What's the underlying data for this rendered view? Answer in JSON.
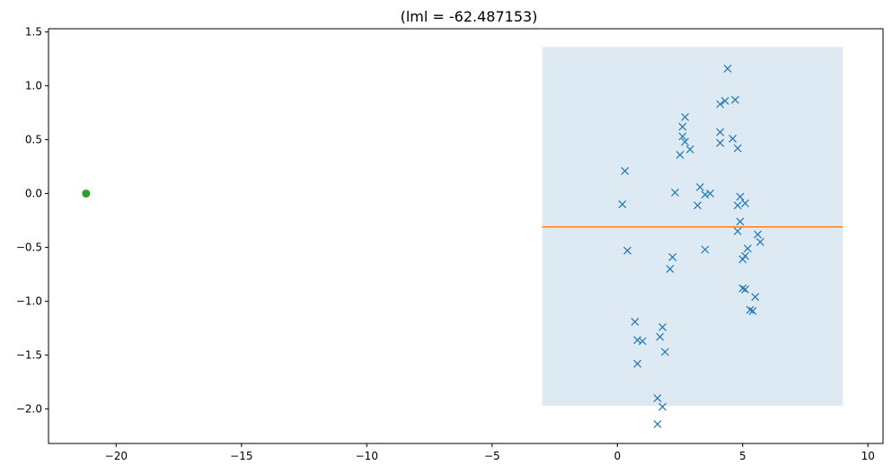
{
  "chart_data": {
    "type": "scatter",
    "title": "(lml = -62.487153)",
    "xlabel": "",
    "ylabel": "",
    "xlim": [
      -22.7,
      10.6
    ],
    "ylim": [
      -2.32,
      1.53
    ],
    "xticks": [
      -20,
      -15,
      -10,
      -5,
      0,
      5,
      10
    ],
    "xtick_labels": [
      "−20",
      "−15",
      "−10",
      "−5",
      "0",
      "5",
      "10"
    ],
    "yticks": [
      -2.0,
      -1.5,
      -1.0,
      -0.5,
      0.0,
      0.5,
      1.0,
      1.5
    ],
    "ytick_labels": [
      "−2.0",
      "−1.5",
      "−1.0",
      "−0.5",
      "0.0",
      "0.5",
      "1.0",
      "1.5"
    ],
    "grid": false,
    "colors": {
      "observations": "#1f77b4",
      "mean": "#ff7f0e",
      "band": "#dde9f3",
      "point": "#2ca02c",
      "axes": "#000000"
    },
    "band": {
      "x": [
        -3.0,
        9.0
      ],
      "y": [
        -1.97,
        1.36
      ]
    },
    "mean_line": {
      "x": [
        -3.0,
        9.0
      ],
      "y": -0.31
    },
    "highlight_point": {
      "x": -21.2,
      "y": 0.0
    },
    "observations": [
      {
        "x": 0.2,
        "y": -0.1
      },
      {
        "x": 0.3,
        "y": 0.21
      },
      {
        "x": 0.4,
        "y": -0.53
      },
      {
        "x": 0.7,
        "y": -1.19
      },
      {
        "x": 0.8,
        "y": -1.36
      },
      {
        "x": 0.8,
        "y": -1.58
      },
      {
        "x": 1.0,
        "y": -1.37
      },
      {
        "x": 1.6,
        "y": -1.9
      },
      {
        "x": 1.6,
        "y": -2.14
      },
      {
        "x": 1.7,
        "y": -1.33
      },
      {
        "x": 1.8,
        "y": -1.24
      },
      {
        "x": 1.8,
        "y": -1.98
      },
      {
        "x": 1.9,
        "y": -1.47
      },
      {
        "x": 2.1,
        "y": -0.7
      },
      {
        "x": 2.2,
        "y": -0.59
      },
      {
        "x": 2.3,
        "y": 0.01
      },
      {
        "x": 2.5,
        "y": 0.36
      },
      {
        "x": 2.6,
        "y": 0.62
      },
      {
        "x": 2.6,
        "y": 0.53
      },
      {
        "x": 2.7,
        "y": 0.71
      },
      {
        "x": 2.7,
        "y": 0.48
      },
      {
        "x": 2.9,
        "y": 0.41
      },
      {
        "x": 3.2,
        "y": -0.11
      },
      {
        "x": 3.3,
        "y": 0.06
      },
      {
        "x": 3.5,
        "y": -0.52
      },
      {
        "x": 3.5,
        "y": -0.01
      },
      {
        "x": 3.7,
        "y": 0.0
      },
      {
        "x": 4.1,
        "y": 0.57
      },
      {
        "x": 4.1,
        "y": 0.47
      },
      {
        "x": 4.1,
        "y": 0.83
      },
      {
        "x": 4.3,
        "y": 0.86
      },
      {
        "x": 4.4,
        "y": 1.16
      },
      {
        "x": 4.6,
        "y": 0.51
      },
      {
        "x": 4.7,
        "y": 0.87
      },
      {
        "x": 4.8,
        "y": 0.42
      },
      {
        "x": 4.8,
        "y": -0.11
      },
      {
        "x": 4.8,
        "y": -0.35
      },
      {
        "x": 4.9,
        "y": -0.03
      },
      {
        "x": 4.9,
        "y": -0.26
      },
      {
        "x": 5.0,
        "y": -0.61
      },
      {
        "x": 5.0,
        "y": -0.88
      },
      {
        "x": 5.1,
        "y": -0.58
      },
      {
        "x": 5.1,
        "y": -0.89
      },
      {
        "x": 5.1,
        "y": -0.09
      },
      {
        "x": 5.2,
        "y": -0.51
      },
      {
        "x": 5.3,
        "y": -1.08
      },
      {
        "x": 5.4,
        "y": -1.09
      },
      {
        "x": 5.5,
        "y": -0.96
      },
      {
        "x": 5.6,
        "y": -0.38
      },
      {
        "x": 5.7,
        "y": -0.45
      }
    ]
  }
}
